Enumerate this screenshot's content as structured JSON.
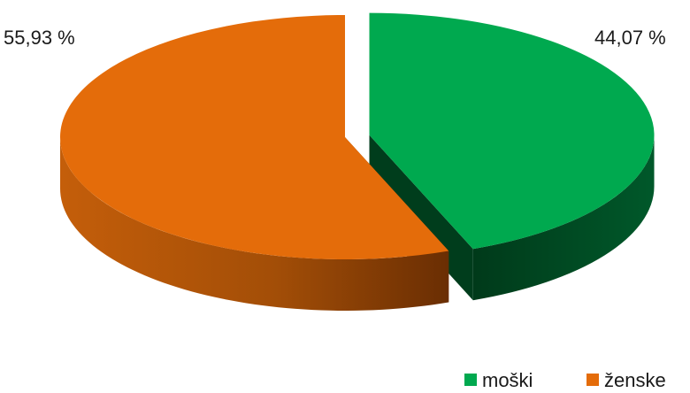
{
  "chart_data": {
    "type": "pie",
    "style": "3d-exploded",
    "slices": [
      {
        "name": "moški",
        "value": 44.07,
        "label": "44,07 %",
        "color": "#00a94f",
        "side_color": "#004d23",
        "exploded": true
      },
      {
        "name": "ženske",
        "value": 55.93,
        "label": "55,93 %",
        "color": "#e46c0a",
        "side_color": "#8a3b05",
        "exploded": false
      }
    ],
    "legend": {
      "placement": "bottom-right",
      "entries": [
        "moški",
        "ženske"
      ]
    },
    "title": "",
    "xlabel": "",
    "ylabel": ""
  }
}
